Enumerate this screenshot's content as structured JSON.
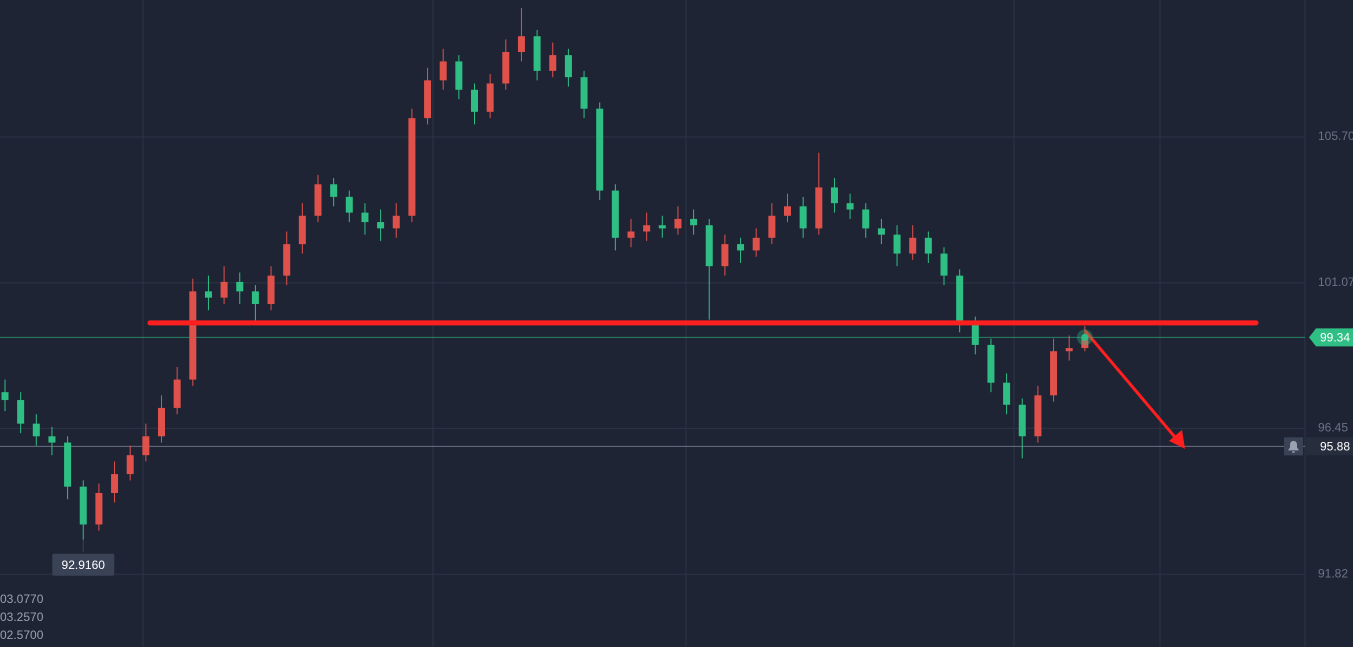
{
  "chart_data": {
    "type": "candlestick",
    "ylim": [
      89.51,
      110.05
    ],
    "yticks": [
      {
        "value": 105.7,
        "label": "105.70"
      },
      101.07,
      96.45,
      91.82
    ],
    "grid": true,
    "up_color": "#e0514c",
    "down_color": "#2fbf84",
    "open": [
      97.6,
      97.35,
      96.6,
      96.2,
      96.0,
      94.6,
      93.4,
      94.4,
      95.0,
      95.6,
      96.2,
      97.1,
      98.0,
      100.8,
      100.6,
      101.1,
      100.8,
      100.4,
      101.3,
      102.3,
      103.2,
      104.2,
      103.8,
      103.3,
      103.0,
      102.8,
      103.2,
      106.3,
      107.5,
      108.1,
      107.2,
      106.5,
      107.4,
      108.4,
      108.9,
      107.8,
      108.3,
      107.6,
      106.6,
      104.0,
      102.5,
      102.7,
      102.9,
      102.8,
      103.1,
      102.9,
      101.6,
      102.3,
      102.1,
      102.5,
      103.2,
      103.5,
      102.8,
      104.1,
      103.6,
      103.4,
      102.8,
      102.6,
      102.0,
      102.5,
      102.0,
      101.3,
      99.8,
      99.1,
      97.9,
      97.2,
      96.2,
      97.5,
      98.9,
      99.0
    ],
    "high": [
      98.0,
      97.6,
      96.9,
      96.5,
      96.2,
      94.8,
      94.7,
      95.4,
      95.9,
      96.6,
      97.5,
      98.4,
      101.2,
      101.3,
      101.6,
      101.4,
      101.0,
      101.6,
      102.7,
      103.6,
      104.5,
      104.4,
      104.0,
      103.6,
      103.4,
      103.6,
      106.6,
      107.9,
      108.5,
      108.3,
      107.4,
      107.7,
      108.8,
      109.8,
      109.1,
      108.7,
      108.5,
      107.8,
      106.8,
      104.2,
      103.1,
      103.3,
      103.2,
      103.5,
      103.4,
      103.1,
      102.6,
      102.5,
      102.8,
      103.6,
      103.9,
      103.8,
      105.2,
      104.4,
      103.9,
      103.6,
      103.1,
      102.9,
      102.9,
      102.7,
      102.2,
      101.5,
      100.0,
      99.3,
      98.2,
      97.4,
      97.8,
      99.3,
      99.4,
      99.7
    ],
    "low": [
      97.0,
      96.3,
      95.9,
      95.6,
      94.2,
      92.916,
      93.2,
      94.1,
      94.8,
      95.4,
      96.0,
      96.9,
      97.8,
      100.2,
      100.4,
      100.4,
      99.8,
      100.2,
      101.0,
      102.0,
      103.0,
      103.5,
      103.0,
      102.6,
      102.4,
      102.5,
      103.0,
      106.1,
      107.2,
      106.9,
      106.1,
      106.3,
      107.2,
      108.1,
      107.5,
      107.6,
      107.3,
      106.3,
      103.7,
      102.1,
      102.2,
      102.4,
      102.5,
      102.6,
      102.6,
      99.9,
      101.3,
      101.7,
      101.9,
      102.3,
      103.0,
      102.5,
      102.6,
      103.3,
      103.1,
      102.5,
      102.3,
      101.6,
      101.8,
      101.7,
      101.0,
      99.5,
      98.8,
      97.6,
      96.9,
      95.5,
      96.0,
      97.3,
      98.6,
      98.9
    ],
    "close": [
      97.35,
      96.6,
      96.2,
      96.0,
      94.6,
      93.4,
      94.4,
      95.0,
      95.6,
      96.2,
      97.1,
      98.0,
      100.8,
      100.6,
      101.1,
      100.8,
      100.4,
      101.3,
      102.3,
      103.2,
      104.2,
      103.8,
      103.3,
      103.0,
      102.8,
      103.2,
      106.3,
      107.5,
      108.1,
      107.2,
      106.5,
      107.4,
      108.4,
      108.9,
      107.8,
      108.3,
      107.6,
      106.6,
      104.0,
      102.5,
      102.7,
      102.9,
      102.8,
      103.1,
      102.9,
      101.6,
      102.3,
      102.1,
      102.5,
      103.2,
      103.5,
      102.8,
      104.1,
      103.6,
      103.4,
      102.8,
      102.6,
      102.0,
      102.5,
      102.0,
      101.3,
      99.8,
      99.1,
      97.9,
      97.2,
      96.2,
      97.5,
      98.9,
      99.0,
      99.34
    ],
    "current_price": {
      "value": 99.34,
      "color": "#2fbf84"
    },
    "alert_price": 95.88,
    "low_marker": {
      "value": 92.916,
      "label": "92.9160"
    },
    "resistance_level": 99.8,
    "resistance_color": "#ff1f1f",
    "arrow": {
      "from": 99.55,
      "to": 95.8,
      "color": "#ff1f1f"
    },
    "info_lines": [
      "03.0770",
      "03.2570",
      "02.5700"
    ]
  }
}
